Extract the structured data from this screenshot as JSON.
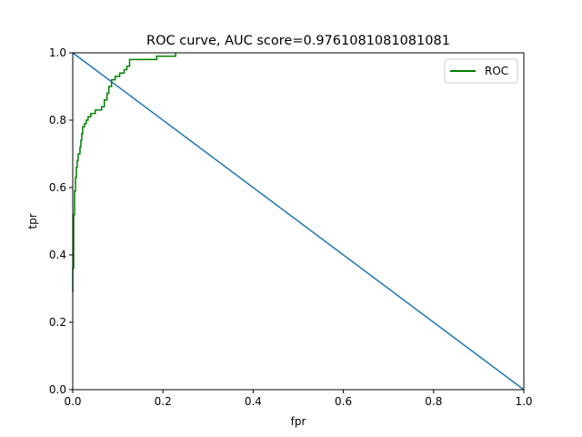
{
  "chart_data": {
    "type": "line",
    "title": "ROC curve, AUC score=0.9761081081081081",
    "xlabel": "fpr",
    "ylabel": "tpr",
    "xlim": [
      0.0,
      1.0
    ],
    "ylim": [
      0.0,
      1.0
    ],
    "xticks": [
      "0.0",
      "0.2",
      "0.4",
      "0.6",
      "0.8",
      "1.0"
    ],
    "yticks": [
      "0.0",
      "0.2",
      "0.4",
      "0.6",
      "0.8",
      "1.0"
    ],
    "grid": false,
    "legend_position": "upper right",
    "series": [
      {
        "name": "ROC",
        "color": "#008000",
        "step": true,
        "x": [
          0.0,
          0.0,
          0.002,
          0.002,
          0.004,
          0.004,
          0.006,
          0.006,
          0.008,
          0.008,
          0.01,
          0.01,
          0.012,
          0.012,
          0.016,
          0.016,
          0.018,
          0.018,
          0.02,
          0.02,
          0.022,
          0.022,
          0.026,
          0.026,
          0.03,
          0.03,
          0.034,
          0.034,
          0.04,
          0.04,
          0.05,
          0.05,
          0.064,
          0.064,
          0.07,
          0.07,
          0.076,
          0.076,
          0.08,
          0.08,
          0.086,
          0.086,
          0.094,
          0.094,
          0.104,
          0.104,
          0.114,
          0.114,
          0.12,
          0.12,
          0.126,
          0.126,
          0.186,
          0.186,
          0.228,
          0.228
        ],
        "y": [
          0.29,
          0.36,
          0.36,
          0.52,
          0.52,
          0.59,
          0.59,
          0.63,
          0.63,
          0.66,
          0.66,
          0.68,
          0.68,
          0.7,
          0.7,
          0.72,
          0.72,
          0.74,
          0.74,
          0.76,
          0.76,
          0.78,
          0.78,
          0.79,
          0.79,
          0.8,
          0.8,
          0.81,
          0.81,
          0.82,
          0.82,
          0.83,
          0.83,
          0.84,
          0.84,
          0.86,
          0.86,
          0.88,
          0.88,
          0.9,
          0.9,
          0.92,
          0.92,
          0.93,
          0.93,
          0.94,
          0.94,
          0.95,
          0.95,
          0.96,
          0.96,
          0.98,
          0.98,
          0.99,
          0.99,
          1.0
        ]
      },
      {
        "name": "",
        "color": "#1f77b4",
        "step": false,
        "x": [
          0.0,
          1.0
        ],
        "y": [
          1.0,
          0.0
        ]
      }
    ]
  }
}
